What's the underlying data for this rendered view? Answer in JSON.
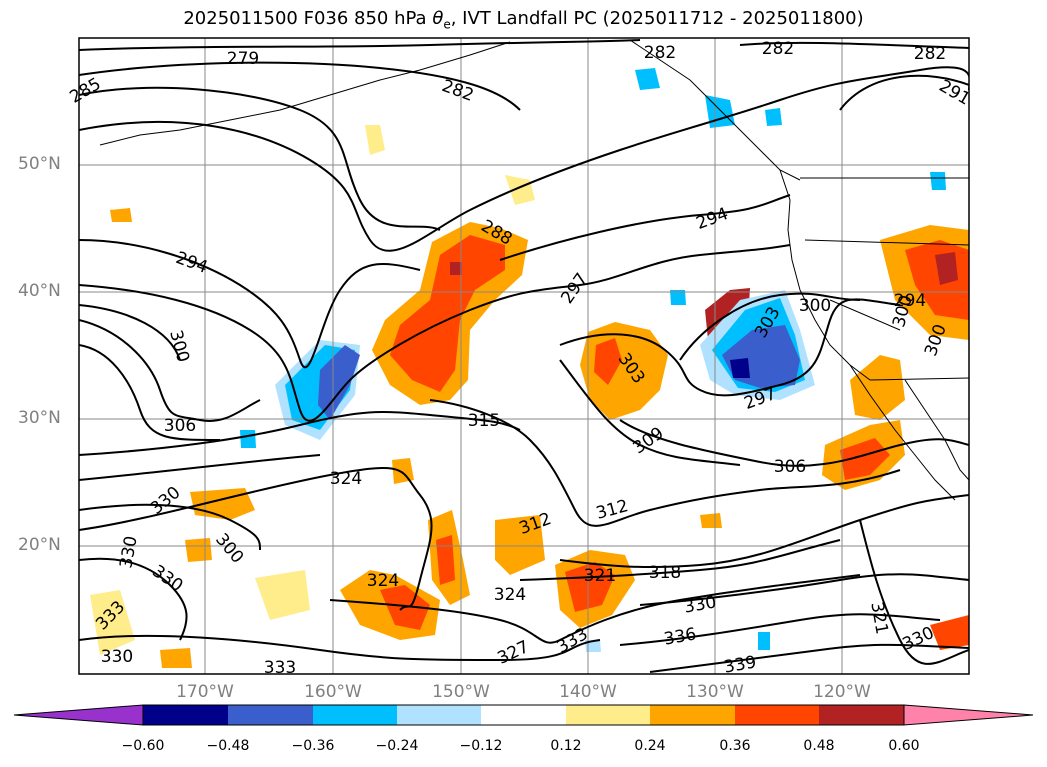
{
  "title_main": "2025011500 F036 850 hPa ",
  "title_symbol": "θ",
  "title_sub": "e",
  "title_rest": ", IVT Landfall PC (2025011712 - 2025011800)",
  "lat_labels": [
    "50°N",
    "40°N",
    "30°N",
    "20°N"
  ],
  "lon_labels": [
    "170°W",
    "160°W",
    "150°W",
    "140°W",
    "130°W",
    "120°W"
  ],
  "contour_labels": [
    "279",
    "282",
    "282",
    "282",
    "282",
    "291",
    "285",
    "288",
    "294",
    "294",
    "297",
    "300",
    "303",
    "300",
    "294",
    "300",
    "306",
    "300",
    "303",
    "297",
    "306",
    "309",
    "315",
    "312",
    "312",
    "318",
    "321",
    "324",
    "324",
    "324",
    "327",
    "330",
    "330",
    "330",
    "330",
    "333",
    "333",
    "333",
    "336",
    "339",
    "330",
    "321",
    "330",
    "300"
  ],
  "colorbar": {
    "ticks": [
      "−0.60",
      "−0.48",
      "−0.36",
      "−0.24",
      "−0.12",
      "0.12",
      "0.24",
      "0.36",
      "0.48",
      "0.60"
    ],
    "colors": [
      "#9932cc",
      "#00008b",
      "#3a5fcd",
      "#00bfff",
      "#b0e2ff",
      "#ffffff",
      "#ffec8b",
      "#ffa500",
      "#ff4500",
      "#b22222",
      "#ff82ab"
    ]
  }
}
